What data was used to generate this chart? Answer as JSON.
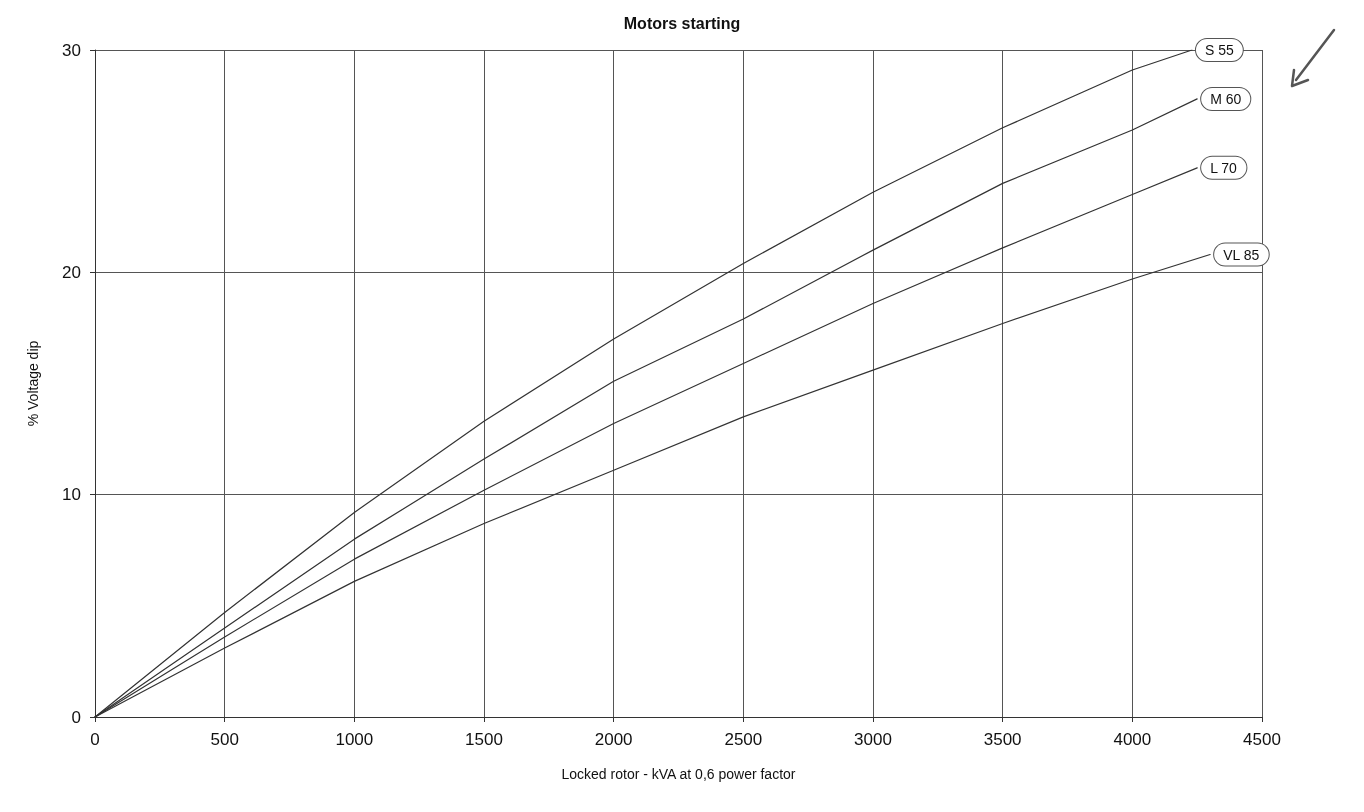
{
  "chart_data": {
    "type": "line",
    "title": "Motors starting",
    "xlabel": "Locked rotor - kVA at 0,6 power factor",
    "ylabel": "% Voltage dip",
    "xlim": [
      0,
      4500
    ],
    "xticks": [
      0,
      500,
      1000,
      1500,
      2000,
      2500,
      3000,
      3500,
      4000,
      4500
    ],
    "ylim": [
      0,
      30
    ],
    "yticks": [
      0,
      10,
      20,
      30
    ],
    "grid": true,
    "legend": false,
    "marker": "none",
    "line_style": "solid",
    "series": [
      {
        "name": "S 55",
        "color": "#333333",
        "x": [
          0,
          500,
          1000,
          1500,
          2000,
          2500,
          3000,
          3500,
          4000,
          4230
        ],
        "values": [
          0,
          4.7,
          9.2,
          13.3,
          17.0,
          20.4,
          23.6,
          26.5,
          29.1,
          30
        ]
      },
      {
        "name": "M 60",
        "color": "#333333",
        "x": [
          0,
          500,
          1000,
          1500,
          2000,
          2500,
          3000,
          3500,
          4000,
          4250
        ],
        "values": [
          0,
          4.0,
          8.0,
          11.6,
          15.1,
          17.9,
          21.0,
          24.0,
          26.4,
          27.8
        ]
      },
      {
        "name": "L 70",
        "color": "#333333",
        "x": [
          0,
          500,
          1000,
          1500,
          2000,
          2500,
          3000,
          3500,
          4000,
          4250
        ],
        "values": [
          0,
          3.6,
          7.1,
          10.2,
          13.2,
          15.9,
          18.6,
          21.1,
          23.5,
          24.7
        ]
      },
      {
        "name": "VL 85",
        "color": "#333333",
        "x": [
          0,
          500,
          1000,
          1500,
          2000,
          2500,
          3000,
          3500,
          4000,
          4300
        ],
        "values": [
          0,
          3.1,
          6.1,
          8.7,
          11.1,
          13.5,
          15.6,
          17.7,
          19.7,
          20.8
        ]
      }
    ]
  }
}
